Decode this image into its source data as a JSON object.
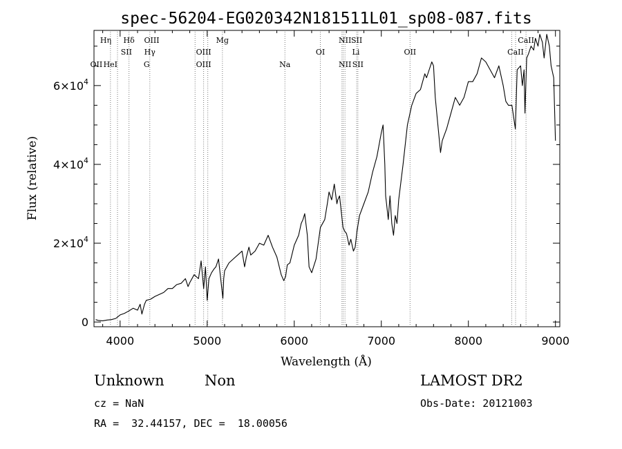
{
  "chart_data": {
    "type": "line",
    "title": "spec-56204-EG020342N181511L01_sp08-087.fits",
    "xlabel": "Wavelength (Å)",
    "ylabel": "Flux (relative)",
    "xlim": [
      3700,
      9050
    ],
    "ylim": [
      -1200,
      74000
    ],
    "x_ticks": [
      4000,
      5000,
      6000,
      7000,
      8000,
      9000
    ],
    "x_tick_labels": [
      "4000",
      "5000",
      "6000",
      "7000",
      "8000",
      "9000"
    ],
    "y_ticks": [
      0,
      20000,
      40000,
      60000
    ],
    "y_tick_labels": [
      {
        "mant": "0",
        "exp": ""
      },
      {
        "mant": "2×10",
        "exp": "4"
      },
      {
        "mant": "4×10",
        "exp": "4"
      },
      {
        "mant": "6×10",
        "exp": "4"
      }
    ],
    "grid": false,
    "series": [
      {
        "x": [
          3720,
          3750,
          3800,
          3850,
          3900,
          3950,
          4000,
          4050,
          4100,
          4150,
          4200,
          4230,
          4250,
          4280,
          4300,
          4350,
          4400,
          4450,
          4500,
          4550,
          4600,
          4650,
          4700,
          4750,
          4780,
          4800,
          4850,
          4900,
          4930,
          4960,
          4980,
          5000,
          5020,
          5050,
          5080,
          5100,
          5130,
          5150,
          5180,
          5190,
          5200,
          5250,
          5300,
          5350,
          5400,
          5430,
          5450,
          5480,
          5500,
          5550,
          5600,
          5650,
          5700,
          5750,
          5800,
          5850,
          5880,
          5900,
          5920,
          5950,
          6000,
          6050,
          6080,
          6100,
          6120,
          6150,
          6170,
          6200,
          6250,
          6300,
          6350,
          6380,
          6400,
          6430,
          6460,
          6490,
          6500,
          6520,
          6560,
          6580,
          6600,
          6630,
          6650,
          6680,
          6700,
          6720,
          6750,
          6800,
          6850,
          6900,
          6950,
          7000,
          7020,
          7040,
          7050,
          7060,
          7080,
          7100,
          7120,
          7140,
          7160,
          7180,
          7200,
          7250,
          7300,
          7350,
          7400,
          7450,
          7500,
          7520,
          7550,
          7580,
          7600,
          7620,
          7650,
          7680,
          7700,
          7750,
          7800,
          7850,
          7900,
          7950,
          8000,
          8050,
          8100,
          8150,
          8200,
          8250,
          8300,
          8350,
          8400,
          8430,
          8460,
          8500,
          8520,
          8540,
          8560,
          8600,
          8620,
          8640,
          8650,
          8670,
          8690,
          8720,
          8750,
          8770,
          8800,
          8820,
          8850,
          8870,
          8900,
          8930,
          8950,
          8980,
          9000
        ],
        "y": [
          600,
          400,
          300,
          500,
          600,
          900,
          1800,
          2200,
          2800,
          3500,
          3000,
          4500,
          2000,
          4500,
          5500,
          5800,
          6500,
          7000,
          7500,
          8500,
          8500,
          9500,
          9800,
          11000,
          9000,
          10000,
          12000,
          11000,
          15500,
          8500,
          14000,
          5500,
          11000,
          12500,
          13500,
          14000,
          16000,
          12000,
          6000,
          11000,
          13000,
          15000,
          16000,
          17000,
          18000,
          14000,
          16500,
          19000,
          17000,
          18000,
          20000,
          19500,
          22000,
          19000,
          16500,
          12000,
          10500,
          11500,
          14500,
          15000,
          19500,
          22000,
          25000,
          26000,
          27500,
          22000,
          14000,
          12500,
          16000,
          24000,
          26000,
          30000,
          33000,
          31000,
          35000,
          30000,
          31000,
          32000,
          24000,
          23000,
          22500,
          19500,
          21000,
          18000,
          19000,
          23000,
          27000,
          30000,
          33000,
          38000,
          42000,
          48000,
          50000,
          40000,
          32000,
          30000,
          26000,
          32000,
          25000,
          22000,
          27000,
          25000,
          31000,
          40000,
          50000,
          55000,
          58000,
          59000,
          63000,
          62000,
          64000,
          66000,
          65000,
          57000,
          50000,
          43000,
          46000,
          49000,
          53000,
          57000,
          55000,
          57000,
          61000,
          61000,
          63000,
          67000,
          66000,
          64000,
          62000,
          65000,
          60000,
          56000,
          55000,
          55000,
          52000,
          49000,
          64000,
          65000,
          60000,
          64000,
          53000,
          67000,
          68000,
          70000,
          69000,
          72000,
          70000,
          73000,
          71000,
          67000,
          73000,
          70000,
          65000,
          62000,
          46000
        ]
      }
    ],
    "lines_dotted": [
      3889,
      3970,
      4102,
      4341,
      4861,
      4959,
      5007,
      5175,
      5893,
      6300,
      6548,
      6563,
      6583,
      6717,
      6731,
      7330,
      8498,
      8542,
      8662
    ],
    "line_labels": [
      {
        "text": "Hη",
        "x": 3835,
        "row": 1
      },
      {
        "text": "Hδ",
        "x": 4102,
        "row": 1
      },
      {
        "text": "OIII",
        "x": 4363,
        "row": 1
      },
      {
        "text": "Mg",
        "x": 5175,
        "row": 1
      },
      {
        "text": "NII",
        "x": 6583,
        "row": 1
      },
      {
        "text": "SII",
        "x": 6717,
        "row": 1
      },
      {
        "text": "CaII",
        "x": 8662,
        "row": 1
      },
      {
        "text": "SII",
        "x": 4072,
        "row": 2
      },
      {
        "text": "Hγ",
        "x": 4341,
        "row": 2
      },
      {
        "text": "OIII",
        "x": 4959,
        "row": 2
      },
      {
        "text": "OI",
        "x": 6300,
        "row": 2
      },
      {
        "text": "Li",
        "x": 6708,
        "row": 2
      },
      {
        "text": "OII",
        "x": 7330,
        "row": 2
      },
      {
        "text": "CaII",
        "x": 8542,
        "row": 2
      },
      {
        "text": "OII",
        "x": 3727,
        "row": 3
      },
      {
        "text": "HeI",
        "x": 3889,
        "row": 3
      },
      {
        "text": "G",
        "x": 4305,
        "row": 3
      },
      {
        "text": "OIII",
        "x": 4959,
        "row": 3
      },
      {
        "text": "Na",
        "x": 5893,
        "row": 3
      },
      {
        "text": "NII",
        "x": 6583,
        "row": 3
      },
      {
        "text": "SII",
        "x": 6731,
        "row": 3
      }
    ]
  },
  "info": {
    "class_text": "Unknown",
    "subclass_text": "Non",
    "survey": "LAMOST DR2",
    "cz": "cz = NaN",
    "obs_date": "Obs-Date: 20121003",
    "coords": "RA =  32.44157, DEC =  18.00056"
  }
}
